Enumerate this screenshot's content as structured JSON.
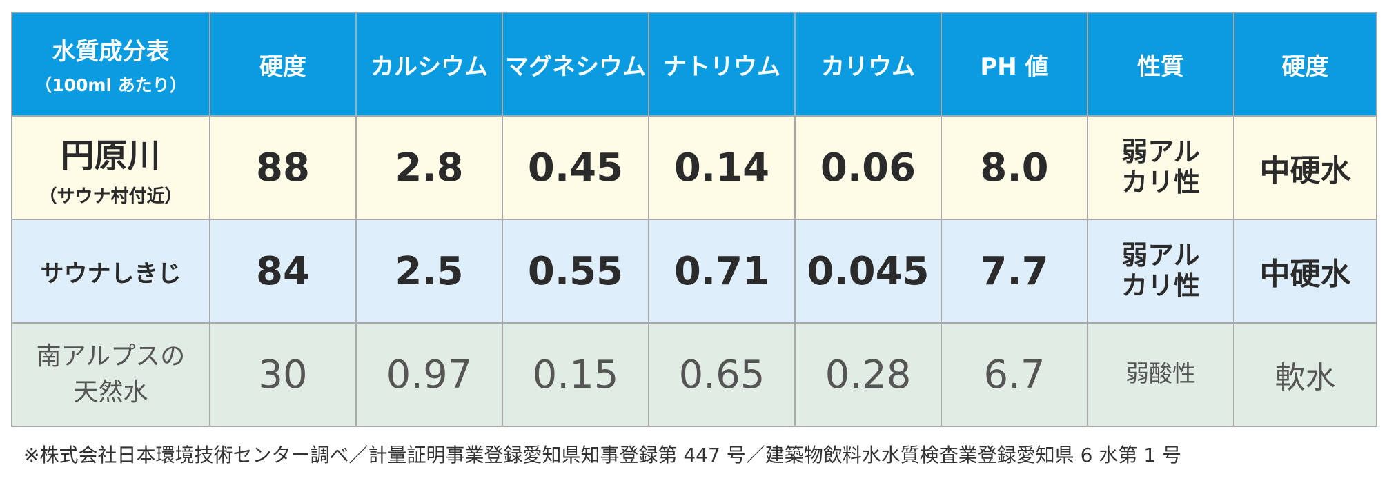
{
  "header": {
    "title": "水質成分表",
    "subtitle": "（100ml あたり）",
    "columns": [
      "硬度",
      "カルシウム",
      "マグネシウム",
      "ナトリウム",
      "カリウム",
      "PH 値",
      "性質",
      "硬度"
    ]
  },
  "rows": [
    {
      "name": "円原川",
      "name_sub": "（サウナ村付近）",
      "hardness": "88",
      "calcium": "2.8",
      "magnesium": "0.45",
      "sodium": "0.14",
      "potassium": "0.06",
      "ph": "8.0",
      "property_line1": "弱アル",
      "property_line2": "カリ性",
      "kind": "中硬水"
    },
    {
      "name": "サウナしきじ",
      "name_sub": "",
      "hardness": "84",
      "calcium": "2.5",
      "magnesium": "0.55",
      "sodium": "0.71",
      "potassium": "0.045",
      "ph": "7.7",
      "property_line1": "弱アル",
      "property_line2": "カリ性",
      "kind": "中硬水"
    },
    {
      "name_line1": "南アルプスの",
      "name_line2": "天然水",
      "hardness": "30",
      "calcium": "0.97",
      "magnesium": "0.15",
      "sodium": "0.65",
      "potassium": "0.28",
      "ph": "6.7",
      "property": "弱酸性",
      "kind": "軟水"
    }
  ],
  "footnote": "※株式会社日本環境技術センター調べ／計量証明事業登録愛知県知事登録第 447 号／建築物飲料水水質検査業登録愛知県 6 水第 1 号",
  "colors": {
    "header_bg": "#0a9be0",
    "row1_bg": "#fefce6",
    "row2_bg": "#dfeefb",
    "row3_bg": "#e0ece4",
    "border": "#a9a9a9"
  }
}
